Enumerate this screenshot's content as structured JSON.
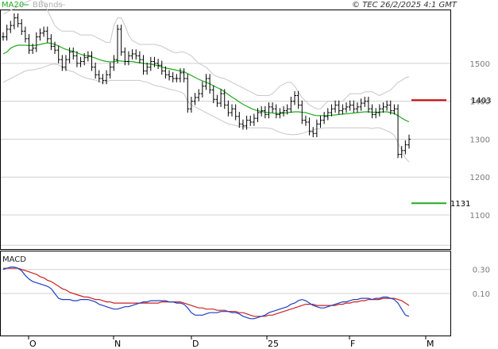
{
  "header": {
    "legend_ma": "MA20",
    "legend_bb": "BBands",
    "copyright": "© TEC 26/2/2025 4:1 GMT",
    "macd_title": "MACD"
  },
  "colors": {
    "ma": "#22aa22",
    "bb": "#c8c8c8",
    "candle": "#000000",
    "grid": "#d0d0d0",
    "resistance": "#cc0000",
    "support": "#22aa22",
    "macd": "#1f3fbf",
    "signal": "#cc2222"
  },
  "chart_data": [
    {
      "type": "ohlc",
      "title": "",
      "x_ticks": [
        "O",
        "N",
        "D",
        "25",
        "F",
        "M"
      ],
      "y_ticks": [
        "1100",
        "1200",
        "1300",
        "1400",
        "1500"
      ],
      "ylim": [
        1010,
        1640
      ],
      "grid": true,
      "series_labels": [
        "MA20",
        "BBands"
      ],
      "resistance": {
        "value": 1403,
        "label": "1403"
      },
      "support": {
        "value": 1131,
        "label": "1131"
      },
      "closes": [
        1570,
        1590,
        1600,
        1620,
        1605,
        1585,
        1565,
        1535,
        1540,
        1570,
        1580,
        1585,
        1565,
        1545,
        1535,
        1510,
        1490,
        1510,
        1530,
        1520,
        1500,
        1505,
        1515,
        1520,
        1490,
        1470,
        1460,
        1455,
        1470,
        1490,
        1510,
        1590,
        1530,
        1505,
        1520,
        1525,
        1520,
        1510,
        1480,
        1490,
        1505,
        1500,
        1495,
        1480,
        1470,
        1465,
        1460,
        1460,
        1475,
        1460,
        1380,
        1400,
        1410,
        1420,
        1440,
        1460,
        1430,
        1405,
        1395,
        1420,
        1390,
        1370,
        1380,
        1360,
        1340,
        1335,
        1350,
        1345,
        1355,
        1370,
        1375,
        1365,
        1385,
        1380,
        1365,
        1370,
        1375,
        1380,
        1400,
        1415,
        1390,
        1350,
        1345,
        1320,
        1315,
        1340,
        1350,
        1360,
        1370,
        1380,
        1390,
        1375,
        1380,
        1385,
        1390,
        1380,
        1385,
        1395,
        1400,
        1380,
        1365,
        1370,
        1380,
        1385,
        1390,
        1375,
        1380,
        1260,
        1270,
        1285,
        1300
      ],
      "ma20": [
        1525,
        1530,
        1540,
        1545,
        1548,
        1548,
        1548,
        1547,
        1547,
        1548,
        1550,
        1552,
        1554,
        1553,
        1550,
        1546,
        1541,
        1537,
        1534,
        1532,
        1528,
        1524,
        1521,
        1519,
        1517,
        1514,
        1510,
        1507,
        1505,
        1504,
        1504,
        1507,
        1506,
        1505,
        1505,
        1505,
        1503,
        1502,
        1500,
        1499,
        1498,
        1496,
        1494,
        1490,
        1488,
        1486,
        1484,
        1482,
        1480,
        1478,
        1473,
        1468,
        1463,
        1458,
        1454,
        1450,
        1446,
        1441,
        1436,
        1432,
        1425,
        1418,
        1411,
        1405,
        1398,
        1392,
        1387,
        1382,
        1378,
        1375,
        1373,
        1371,
        1370,
        1369,
        1368,
        1368,
        1369,
        1370,
        1371,
        1372,
        1372,
        1371,
        1370,
        1367,
        1364,
        1362,
        1362,
        1362,
        1362,
        1363,
        1364,
        1365,
        1366,
        1367,
        1368,
        1369,
        1370,
        1371,
        1372,
        1372,
        1371,
        1371,
        1371,
        1372,
        1372,
        1370,
        1368,
        1362,
        1356,
        1350,
        1346
      ],
      "bb_upper": [
        1630,
        1635,
        1640,
        1645,
        1650,
        1655,
        1660,
        1665,
        1670,
        1670,
        1668,
        1660,
        1640,
        1620,
        1600,
        1590,
        1585,
        1585,
        1585,
        1585,
        1580,
        1575,
        1575,
        1575,
        1575,
        1570,
        1565,
        1560,
        1555,
        1555,
        1600,
        1620,
        1620,
        1600,
        1575,
        1560,
        1555,
        1550,
        1550,
        1550,
        1550,
        1550,
        1548,
        1545,
        1540,
        1535,
        1530,
        1528,
        1530,
        1530,
        1525,
        1520,
        1510,
        1500,
        1495,
        1490,
        1480,
        1470,
        1465,
        1462,
        1460,
        1455,
        1450,
        1445,
        1440,
        1435,
        1430,
        1425,
        1420,
        1415,
        1415,
        1415,
        1415,
        1420,
        1430,
        1440,
        1445,
        1450,
        1450,
        1440,
        1425,
        1410,
        1400,
        1390,
        1385,
        1380,
        1380,
        1390,
        1400,
        1400,
        1400,
        1400,
        1400,
        1410,
        1420,
        1420,
        1420,
        1420,
        1425,
        1425,
        1425,
        1420,
        1415,
        1420,
        1425,
        1430,
        1440,
        1450,
        1455,
        1462,
        1465
      ],
      "bb_lower": [
        1450,
        1455,
        1460,
        1465,
        1470,
        1475,
        1480,
        1482,
        1483,
        1485,
        1487,
        1490,
        1494,
        1497,
        1498,
        1496,
        1490,
        1484,
        1480,
        1478,
        1472,
        1467,
        1463,
        1460,
        1458,
        1456,
        1452,
        1450,
        1452,
        1455,
        1455,
        1455,
        1455,
        1455,
        1455,
        1455,
        1455,
        1455,
        1452,
        1450,
        1446,
        1442,
        1440,
        1438,
        1435,
        1432,
        1430,
        1428,
        1425,
        1420,
        1400,
        1390,
        1385,
        1380,
        1375,
        1370,
        1365,
        1360,
        1355,
        1350,
        1345,
        1340,
        1338,
        1336,
        1334,
        1332,
        1331,
        1330,
        1330,
        1330,
        1330,
        1330,
        1329,
        1327,
        1322,
        1318,
        1315,
        1313,
        1312,
        1312,
        1313,
        1315,
        1318,
        1322,
        1325,
        1327,
        1328,
        1330,
        1330,
        1330,
        1330,
        1330,
        1330,
        1330,
        1330,
        1330,
        1330,
        1330,
        1330,
        1330,
        1328,
        1330,
        1330,
        1326,
        1322,
        1318,
        1310,
        1290,
        1270,
        1250,
        1240
      ]
    },
    {
      "type": "line",
      "title": "MACD",
      "y_ticks": [
        "0.30",
        "0.10"
      ],
      "ylim": [
        -0.25,
        0.45
      ],
      "series": [
        {
          "name": "MACD",
          "values": [
            0.3,
            0.31,
            0.32,
            0.32,
            0.31,
            0.29,
            0.25,
            0.22,
            0.2,
            0.19,
            0.18,
            0.17,
            0.16,
            0.14,
            0.1,
            0.06,
            0.05,
            0.05,
            0.05,
            0.04,
            0.04,
            0.05,
            0.05,
            0.05,
            0.04,
            0.03,
            0.01,
            0.0,
            -0.01,
            -0.02,
            -0.03,
            -0.03,
            -0.02,
            -0.01,
            -0.01,
            0.0,
            0.01,
            0.02,
            0.03,
            0.03,
            0.04,
            0.04,
            0.04,
            0.04,
            0.04,
            0.03,
            0.03,
            0.02,
            0.02,
            0.01,
            -0.02,
            -0.06,
            -0.08,
            -0.08,
            -0.08,
            -0.07,
            -0.06,
            -0.06,
            -0.06,
            -0.05,
            -0.05,
            -0.05,
            -0.06,
            -0.06,
            -0.07,
            -0.09,
            -0.1,
            -0.11,
            -0.11,
            -0.1,
            -0.09,
            -0.08,
            -0.06,
            -0.05,
            -0.04,
            -0.03,
            -0.02,
            -0.01,
            0.01,
            0.02,
            0.04,
            0.05,
            0.04,
            0.02,
            0.0,
            -0.01,
            -0.02,
            -0.02,
            -0.01,
            0.0,
            0.01,
            0.02,
            0.03,
            0.03,
            0.04,
            0.05,
            0.05,
            0.06,
            0.06,
            0.06,
            0.05,
            0.06,
            0.06,
            0.07,
            0.07,
            0.06,
            0.05,
            0.02,
            -0.03,
            -0.08,
            -0.09
          ]
        },
        {
          "name": "Signal",
          "values": [
            0.31,
            0.31,
            0.31,
            0.31,
            0.31,
            0.3,
            0.29,
            0.28,
            0.27,
            0.26,
            0.24,
            0.23,
            0.21,
            0.2,
            0.18,
            0.16,
            0.14,
            0.13,
            0.11,
            0.1,
            0.09,
            0.08,
            0.07,
            0.07,
            0.06,
            0.05,
            0.05,
            0.04,
            0.03,
            0.03,
            0.02,
            0.02,
            0.02,
            0.02,
            0.02,
            0.02,
            0.02,
            0.02,
            0.02,
            0.02,
            0.02,
            0.02,
            0.02,
            0.03,
            0.03,
            0.03,
            0.03,
            0.03,
            0.03,
            0.02,
            0.01,
            0.0,
            -0.01,
            -0.02,
            -0.02,
            -0.03,
            -0.03,
            -0.03,
            -0.04,
            -0.04,
            -0.04,
            -0.05,
            -0.05,
            -0.05,
            -0.06,
            -0.06,
            -0.07,
            -0.08,
            -0.09,
            -0.09,
            -0.09,
            -0.09,
            -0.08,
            -0.08,
            -0.07,
            -0.06,
            -0.05,
            -0.04,
            -0.03,
            -0.02,
            -0.01,
            0.0,
            0.01,
            0.01,
            0.01,
            0.0,
            0.0,
            0.0,
            0.0,
            0.0,
            0.0,
            0.01,
            0.01,
            0.02,
            0.02,
            0.03,
            0.03,
            0.04,
            0.04,
            0.05,
            0.05,
            0.05,
            0.05,
            0.06,
            0.06,
            0.06,
            0.06,
            0.05,
            0.04,
            0.02,
            0.0
          ]
        }
      ]
    }
  ]
}
